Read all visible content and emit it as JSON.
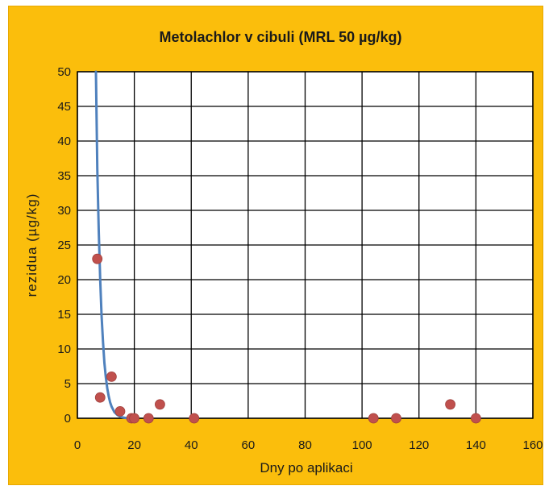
{
  "chart_data": {
    "type": "scatter",
    "title": "Metolachlor v cibuli (MRL 50 µg/kg)",
    "xlabel": "Dny po aplikaci",
    "ylabel": "rezidua (µg/kg)",
    "xlim": [
      0,
      160
    ],
    "ylim": [
      0,
      50
    ],
    "xticks": [
      0,
      20,
      40,
      60,
      80,
      100,
      120,
      140,
      160
    ],
    "yticks": [
      0,
      5,
      10,
      15,
      20,
      25,
      30,
      35,
      40,
      45,
      50
    ],
    "grid": true,
    "legend": "none",
    "series": [
      {
        "kind": "points",
        "color": "#c0504d",
        "x": [
          7,
          8,
          12,
          15,
          19,
          20,
          25,
          29,
          41,
          104,
          112,
          131,
          140
        ],
        "y": [
          23,
          3,
          6,
          1,
          0,
          0,
          0,
          2,
          0,
          0,
          0,
          2,
          0
        ]
      },
      {
        "kind": "trend-line",
        "color": "#4f81bd",
        "x": [
          6.5,
          7,
          7.5,
          8,
          8.5,
          9,
          9.5,
          10,
          10.5,
          11,
          11.5,
          12,
          13,
          14,
          15,
          16,
          17,
          18,
          19,
          20
        ],
        "y": [
          50,
          36,
          27,
          20,
          14.8,
          11,
          8,
          5.9,
          4.3,
          3.2,
          2.3,
          1.7,
          0.9,
          0.5,
          0.25,
          0.12,
          0.05,
          0.02,
          0,
          0
        ]
      }
    ]
  },
  "colors": {
    "background": "#fbbe0c",
    "plot_area": "#ffffff",
    "grid": "#000000"
  }
}
